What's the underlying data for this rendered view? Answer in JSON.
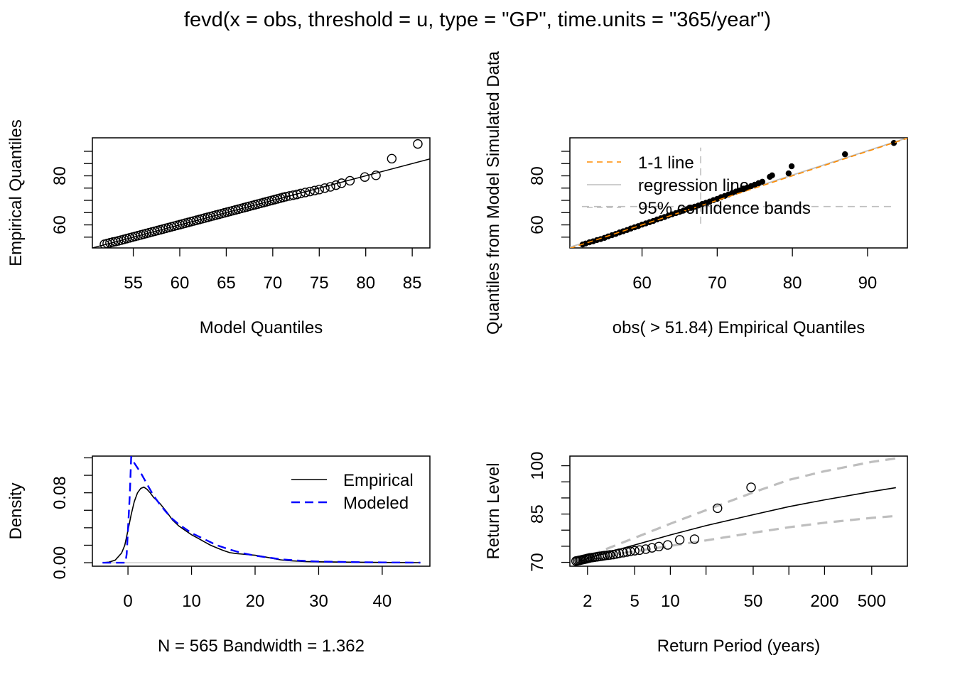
{
  "title": "fevd(x = obs, threshold = u, type = \"GP\", time.units = \"365/year\")",
  "chart_data": [
    {
      "type": "scatter",
      "panel": "top-left",
      "xlabel": "Model Quantiles",
      "ylabel": "Empirical Quantiles",
      "xlim": [
        50.6,
        86.9
      ],
      "ylim": [
        50.6,
        95.5
      ],
      "xticks": [
        55,
        60,
        65,
        70,
        75,
        80,
        85
      ],
      "yticks": [
        60,
        80
      ],
      "line": {
        "x": [
          50.6,
          86.9
        ],
        "y": [
          50.6,
          86.9
        ]
      },
      "points": {
        "x": [
          51.9,
          52.2,
          52.5,
          52.8,
          53.1,
          53.4,
          53.7,
          54.0,
          54.3,
          54.6,
          54.9,
          55.2,
          55.5,
          55.8,
          56.1,
          56.4,
          56.7,
          57.0,
          57.3,
          57.6,
          57.9,
          58.2,
          58.5,
          58.8,
          59.1,
          59.4,
          59.7,
          60.0,
          60.3,
          60.6,
          60.9,
          61.2,
          61.5,
          61.8,
          62.1,
          62.4,
          62.7,
          63.0,
          63.3,
          63.6,
          63.9,
          64.2,
          64.5,
          64.8,
          65.1,
          65.4,
          65.7,
          66.0,
          66.3,
          66.6,
          66.9,
          67.2,
          67.5,
          67.8,
          68.1,
          68.4,
          68.7,
          69.0,
          69.3,
          69.6,
          69.9,
          70.2,
          70.5,
          70.8,
          71.1,
          71.4,
          71.8,
          72.2,
          72.6,
          73.0,
          73.5,
          74.0,
          74.5,
          75.0,
          75.6,
          76.2,
          76.8,
          77.4,
          78.3,
          79.9,
          81.1,
          82.8,
          85.6
        ],
        "y": [
          52.1,
          52.4,
          52.7,
          53.0,
          53.2,
          53.5,
          53.8,
          54.1,
          54.4,
          54.7,
          55.0,
          55.3,
          55.6,
          55.9,
          56.2,
          56.5,
          56.8,
          57.1,
          57.4,
          57.7,
          58.0,
          58.3,
          58.6,
          58.9,
          59.2,
          59.5,
          59.8,
          60.1,
          60.4,
          60.7,
          61.0,
          61.3,
          61.6,
          61.9,
          62.2,
          62.5,
          62.8,
          63.1,
          63.4,
          63.7,
          64.0,
          64.3,
          64.6,
          64.9,
          65.2,
          65.5,
          65.8,
          66.1,
          66.4,
          66.7,
          67.0,
          67.3,
          67.6,
          67.9,
          68.2,
          68.5,
          68.8,
          69.1,
          69.4,
          69.7,
          70.0,
          70.3,
          70.6,
          70.9,
          71.2,
          71.5,
          71.8,
          72.1,
          72.4,
          72.8,
          73.2,
          73.6,
          74.0,
          74.4,
          75.0,
          75.5,
          76.2,
          77.0,
          78.0,
          79.5,
          80.2,
          87.0,
          93.0
        ]
      }
    },
    {
      "type": "scatter",
      "panel": "top-right",
      "xlabel": "obs( > 51.84) Empirical Quantiles",
      "ylabel": "Quantiles from Model Simulated Data",
      "xlim": [
        50.4,
        95.3
      ],
      "ylim": [
        50.6,
        95.5
      ],
      "xticks": [
        60,
        70,
        80,
        90
      ],
      "yticks": [
        60,
        80
      ],
      "legend": {
        "position": "top-left",
        "entries": [
          {
            "label": "1-1 line",
            "color": "#ff8c00",
            "style": "dashed"
          },
          {
            "label": "regression line",
            "color": "#bebebe",
            "style": "solid"
          },
          {
            "label": "95% confidence bands",
            "color": "#bebebe",
            "style": "dashed"
          }
        ]
      },
      "one_to_one": {
        "x": [
          50.4,
          95.3
        ],
        "y": [
          50.4,
          95.3
        ]
      },
      "regression": {
        "x": [
          50.4,
          95.3
        ],
        "y": [
          50.9,
          95.5
        ]
      },
      "band_horizontal": {
        "x": [
          52,
          93.7
        ],
        "y": 67.5
      },
      "band_vertical": {
        "x": 67.8,
        "y": [
          60.5,
          91.5
        ]
      },
      "points": {
        "x": [
          52.1,
          52.5,
          53.0,
          53.5,
          54.0,
          54.5,
          55.0,
          55.5,
          56.0,
          56.5,
          57.0,
          57.5,
          58.0,
          58.5,
          59.0,
          59.5,
          60.0,
          60.5,
          61.0,
          61.5,
          62.0,
          62.5,
          63.0,
          63.5,
          64.0,
          64.5,
          65.0,
          65.5,
          66.0,
          66.5,
          67.0,
          67.5,
          68.0,
          68.5,
          69.0,
          69.5,
          70.0,
          70.5,
          71.0,
          71.5,
          72.0,
          72.5,
          73.0,
          73.5,
          74.0,
          74.5,
          75.0,
          75.5,
          76.0,
          77.0,
          77.3,
          79.5,
          79.9,
          87.0,
          93.5
        ],
        "y": [
          52.0,
          52.4,
          52.9,
          53.3,
          53.8,
          54.2,
          54.7,
          55.3,
          55.8,
          56.3,
          56.9,
          57.4,
          57.9,
          58.5,
          59.0,
          59.5,
          60.1,
          60.6,
          61.1,
          61.6,
          62.2,
          62.7,
          63.2,
          63.8,
          64.3,
          64.8,
          65.3,
          65.8,
          66.4,
          66.9,
          67.4,
          67.9,
          68.5,
          69.0,
          69.5,
          70.1,
          70.6,
          71.3,
          71.8,
          72.4,
          73.0,
          73.6,
          74.0,
          74.6,
          75.2,
          75.8,
          76.4,
          77.0,
          77.6,
          79.6,
          80.2,
          81.0,
          83.9,
          88.8,
          93.4
        ]
      }
    },
    {
      "type": "line",
      "panel": "bottom-left",
      "xlabel": "N = 565   Bandwidth = 1.362",
      "ylabel": "Density",
      "xlim": [
        -5.6,
        47.5
      ],
      "ylim": [
        -0.004,
        0.122
      ],
      "xticks": [
        0,
        10,
        20,
        30,
        40
      ],
      "yticks": [
        0.0,
        0.08
      ],
      "yticklabels": [
        "0.00",
        "0.08"
      ],
      "legend": {
        "position": "top-right",
        "entries": [
          {
            "label": "Empirical",
            "color": "#000000",
            "style": "solid"
          },
          {
            "label": "Modeled",
            "color": "#0000ff",
            "style": "dashed"
          }
        ]
      },
      "series": [
        {
          "name": "Empirical",
          "color": "#000000",
          "x": [
            -3.9,
            -3,
            -2,
            -1,
            -0.5,
            0,
            0.5,
            1,
            1.5,
            2,
            2.5,
            3,
            3.5,
            4,
            5,
            6,
            7,
            8,
            9,
            10,
            11,
            12,
            13,
            14,
            15,
            16,
            17,
            18,
            19,
            20,
            21,
            22,
            23,
            24,
            25,
            26,
            28,
            30,
            35,
            40,
            46
          ],
          "y": [
            0,
            0.0006,
            0.003,
            0.011,
            0.02,
            0.037,
            0.055,
            0.07,
            0.08,
            0.085,
            0.0865,
            0.084,
            0.08,
            0.075,
            0.068,
            0.059,
            0.049,
            0.042,
            0.037,
            0.032,
            0.028,
            0.024,
            0.02,
            0.017,
            0.014,
            0.0115,
            0.0105,
            0.0098,
            0.0092,
            0.0085,
            0.0075,
            0.006,
            0.0045,
            0.0033,
            0.0025,
            0.002,
            0.0014,
            0.001,
            0.0006,
            0.0003,
            0.0001
          ]
        },
        {
          "name": "Modeled",
          "color": "#0000ff",
          "x": [
            -4,
            -0.4,
            -0.2,
            0.3,
            0.5,
            1,
            2,
            3,
            4,
            5,
            6,
            7,
            8,
            10,
            12,
            14,
            16,
            18,
            20,
            22,
            24,
            26,
            28,
            30,
            35,
            40,
            46
          ],
          "y": [
            0,
            0,
            0.01,
            0.08,
            0.121,
            0.114,
            0.103,
            0.09,
            0.077,
            0.067,
            0.058,
            0.05,
            0.044,
            0.034,
            0.027,
            0.02,
            0.015,
            0.011,
            0.008,
            0.006,
            0.004,
            0.0028,
            0.002,
            0.0014,
            0.0007,
            0.0003,
            0.0001
          ]
        }
      ],
      "reference_line": {
        "y": 0,
        "color": "#bebebe"
      }
    },
    {
      "type": "line",
      "panel": "bottom-right",
      "xlabel": "Return Period (years)",
      "ylabel": "Return Level",
      "xscale": "log",
      "xlim": [
        1.42,
        1000
      ],
      "ylim": [
        68.8,
        103.0
      ],
      "xticks_major": [
        2,
        5,
        10,
        50,
        200,
        500
      ],
      "xticks_minor": [
        20,
        100
      ],
      "yticks": [
        70,
        75,
        80,
        85,
        90,
        95,
        100
      ],
      "yticklabels": [
        "70",
        "",
        "",
        "85",
        "",
        "",
        "100"
      ],
      "series": [
        {
          "name": "Return Level",
          "color": "#000000",
          "style": "solid",
          "x": [
            1.6,
            2,
            3,
            5,
            10,
            20,
            50,
            100,
            200,
            500,
            800
          ],
          "y": [
            69.8,
            71.2,
            73.1,
            75.4,
            78.5,
            81.4,
            84.8,
            87.3,
            89.4,
            92.0,
            93.2
          ]
        },
        {
          "name": "Upper 95%",
          "color": "#bebebe",
          "style": "dashed",
          "x": [
            1.6,
            2,
            3,
            5,
            10,
            20,
            50,
            100,
            200,
            500,
            800
          ],
          "y": [
            70.1,
            71.8,
            74.4,
            77.6,
            82.0,
            86.2,
            91.7,
            95.6,
            98.3,
            101.2,
            102.3
          ]
        },
        {
          "name": "Lower 95%",
          "color": "#bebebe",
          "style": "dashed",
          "x": [
            1.6,
            2,
            3,
            5,
            10,
            20,
            50,
            100,
            200,
            500,
            800
          ],
          "y": [
            69.3,
            70.6,
            72.0,
            73.4,
            75.1,
            76.8,
            79.2,
            80.9,
            82.3,
            83.8,
            84.4
          ]
        }
      ],
      "points": {
        "x": [
          1.6,
          1.65,
          1.7,
          1.75,
          1.8,
          1.85,
          1.9,
          1.95,
          2.0,
          2.05,
          2.1,
          2.2,
          2.3,
          2.4,
          2.5,
          2.6,
          2.7,
          2.8,
          2.95,
          3.1,
          3.3,
          3.5,
          3.7,
          4.0,
          4.3,
          4.6,
          5.0,
          5.5,
          6.2,
          7.0,
          8.0,
          9.5,
          12,
          16,
          25,
          48
        ],
        "y": [
          70.4,
          70.5,
          70.6,
          70.7,
          70.8,
          70.9,
          71.0,
          71.1,
          71.2,
          71.3,
          71.4,
          71.5,
          71.6,
          71.7,
          71.8,
          71.9,
          72.0,
          72.1,
          72.2,
          72.3,
          72.4,
          72.6,
          72.8,
          73.0,
          73.2,
          73.4,
          73.6,
          73.8,
          74.1,
          74.5,
          74.9,
          75.4,
          77.0,
          77.2,
          86.8,
          93.3
        ]
      }
    }
  ]
}
